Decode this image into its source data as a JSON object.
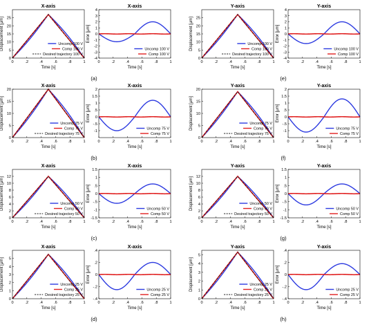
{
  "figure": {
    "rows": [
      "(a)",
      "(b)",
      "(c)",
      "(d)"
    ],
    "rows_right": [
      "(e)",
      "(f)",
      "(g)",
      "(h)"
    ]
  },
  "colors": {
    "uncomp": "#2c3ae0",
    "comp": "#e01f1f",
    "desired": "#111111"
  },
  "chart_data": [
    {
      "type": "line",
      "title": "X-axis",
      "xlabel": "Time [s]",
      "ylabel": "Displacement [μm]",
      "xlim": [
        0,
        1
      ],
      "ylim": [
        0,
        30
      ],
      "yticks": [
        0,
        5,
        10,
        15,
        20,
        25
      ],
      "peak": 27,
      "legend": [
        "Uncomp  100 V",
        "Comp  100 V",
        "Desired trajectory  100 V"
      ]
    },
    {
      "type": "line",
      "title": "X-axis",
      "xlabel": "Time [s]",
      "ylabel": "Error [μm]",
      "xlim": [
        0,
        1
      ],
      "ylim": [
        -4,
        4
      ],
      "yticks": [
        -4,
        -3,
        -2,
        -1,
        0,
        1,
        2,
        3,
        4
      ],
      "neg_peak": -1.3,
      "pos_peak": 2.0,
      "legend": [
        "Uncomp  100 V",
        "Comp  100 V"
      ]
    },
    {
      "type": "line",
      "title": "Y-axis",
      "xlabel": "Time [s]",
      "ylabel": "Displacement [μm]",
      "xlim": [
        0,
        1
      ],
      "ylim": [
        0,
        30
      ],
      "yticks": [
        0,
        5,
        10,
        15,
        20,
        25
      ],
      "peak": 27,
      "legend": [
        "Uncomp  100 V",
        "Comp  100 V",
        "Desired trajectory  100 V"
      ]
    },
    {
      "type": "line",
      "title": "Y-axis",
      "xlabel": "Time [s]",
      "ylabel": "Error [μm]",
      "xlim": [
        0,
        1
      ],
      "ylim": [
        -4,
        4
      ],
      "yticks": [
        -4,
        -3,
        -2,
        -1,
        0,
        1,
        2,
        3,
        4
      ],
      "neg_peak": -1.6,
      "pos_peak": 2.0,
      "legend": [
        "Uncomp  100 V",
        "Comp  100 V"
      ]
    },
    {
      "type": "line",
      "title": "X-axis",
      "xlabel": "Time [s]",
      "ylabel": "Displacement [μm]",
      "xlim": [
        0,
        1
      ],
      "ylim": [
        0,
        20
      ],
      "yticks": [
        0,
        5,
        10,
        15,
        20
      ],
      "peak": 20,
      "legend": [
        "Uncomp  75 V",
        "Comp  75 V",
        "Desired trajectory  75 V"
      ]
    },
    {
      "type": "line",
      "title": "X-axis",
      "xlabel": "Time [s]",
      "ylabel": "Error [μm]",
      "xlim": [
        0,
        1
      ],
      "ylim": [
        -1.5,
        2
      ],
      "yticks": [
        -1,
        -0.5,
        0,
        0.5,
        1,
        1.5,
        2
      ],
      "neg_peak": -1.0,
      "pos_peak": 1.2,
      "legend": [
        "Uncomp  75 V",
        "Comp  75 V"
      ]
    },
    {
      "type": "line",
      "title": "Y-axis",
      "xlabel": "Time [s]",
      "ylabel": "Displacement [μm]",
      "xlim": [
        0,
        1
      ],
      "ylim": [
        0,
        20
      ],
      "yticks": [
        0,
        5,
        10,
        15,
        20
      ],
      "peak": 19,
      "legend": [
        "Uncomp  75 V",
        "Comp  75 V",
        "Desired trajectory  75 V"
      ]
    },
    {
      "type": "line",
      "title": "Y-axis",
      "xlabel": "Time [s]",
      "ylabel": "Error [μm]",
      "xlim": [
        0,
        1
      ],
      "ylim": [
        -1.5,
        2
      ],
      "yticks": [
        -1,
        -0.5,
        0,
        0.5,
        1,
        1.5,
        2
      ],
      "neg_peak": -1.1,
      "pos_peak": 1.3,
      "legend": [
        "Uncomp  75 V",
        "Comp  75 V"
      ]
    },
    {
      "type": "line",
      "title": "X-axis",
      "xlabel": "Time [s]",
      "ylabel": "Displacement [μm]",
      "xlim": [
        0,
        1
      ],
      "ylim": [
        0,
        14
      ],
      "yticks": [
        0,
        2,
        4,
        6,
        8,
        10,
        12
      ],
      "peak": 12,
      "legend": [
        "Uncomp  50 V",
        "Comp  50 V",
        "Desired trajectory  50 V"
      ]
    },
    {
      "type": "line",
      "title": "X-axis",
      "xlabel": "Time [s]",
      "ylabel": "Error [μm]",
      "xlim": [
        0,
        1
      ],
      "ylim": [
        -1.5,
        1.5
      ],
      "yticks": [
        -1.5,
        -1,
        -0.5,
        0,
        0.5,
        1,
        1.5
      ],
      "neg_peak": -0.6,
      "pos_peak": 0.6,
      "legend": [
        "Uncomp  50 V",
        "Comp  50 V"
      ]
    },
    {
      "type": "line",
      "title": "Y-axis",
      "xlabel": "Time [s]",
      "ylabel": "Displacement [μm]",
      "xlim": [
        0,
        1
      ],
      "ylim": [
        0,
        14
      ],
      "yticks": [
        0,
        2,
        4,
        6,
        8,
        10,
        12
      ],
      "peak": 12,
      "legend": [
        "Uncomp  50 V",
        "Comp  50 V",
        "Desired trajectory  50 V"
      ]
    },
    {
      "type": "line",
      "title": "Y-axis",
      "xlabel": "Time [s]",
      "ylabel": "Error [μm]",
      "xlim": [
        0,
        1
      ],
      "ylim": [
        -1.5,
        1.5
      ],
      "yticks": [
        -1.5,
        -1,
        -0.5,
        0,
        0.5,
        1,
        1.5
      ],
      "neg_peak": -0.7,
      "pos_peak": 0.6,
      "legend": [
        "Uncomp  50 V",
        "Comp  50 V"
      ]
    },
    {
      "type": "line",
      "title": "X-axis",
      "xlabel": "Time [s]",
      "ylabel": "Displacement [μm]",
      "xlim": [
        0,
        1
      ],
      "ylim": [
        0,
        6
      ],
      "yticks": [
        0,
        1,
        2,
        3,
        4,
        5
      ],
      "peak": 5.5,
      "legend": [
        "Uncomp  25 V",
        "Comp  25 V",
        "Desired trajectory  25 V"
      ]
    },
    {
      "type": "line",
      "title": "X-axis",
      "xlabel": "Time [s]",
      "ylabel": "Error [μm]",
      "xlim": [
        0,
        1
      ],
      "ylim": [
        -0.4,
        0.4
      ],
      "yticks": [
        -0.4,
        -0.2,
        0,
        0.2,
        0.4
      ],
      "neg_peak": -0.25,
      "pos_peak": 0.2,
      "legend": [
        "Uncomp  25 V",
        "Comp  25 V"
      ]
    },
    {
      "type": "line",
      "title": "Y-axis",
      "xlabel": "Time [s]",
      "ylabel": "Displacement [μm]",
      "xlim": [
        0,
        1
      ],
      "ylim": [
        0,
        5.5
      ],
      "yticks": [
        0,
        1,
        2,
        3,
        4,
        5
      ],
      "peak": 5.3,
      "legend": [
        "Uncomp  25 V",
        "Comp  25 V",
        "Desired trajectory  25 V"
      ]
    },
    {
      "type": "line",
      "title": "Y-axis",
      "xlabel": "Time [s]",
      "ylabel": "Error [μm]",
      "xlim": [
        0,
        1
      ],
      "ylim": [
        -0.4,
        0.4
      ],
      "yticks": [
        -0.4,
        -0.2,
        0,
        0.2,
        0.4
      ],
      "neg_peak": -0.25,
      "pos_peak": 0.18,
      "legend": [
        "Uncomp  25 V",
        "Comp  25 V"
      ]
    }
  ]
}
